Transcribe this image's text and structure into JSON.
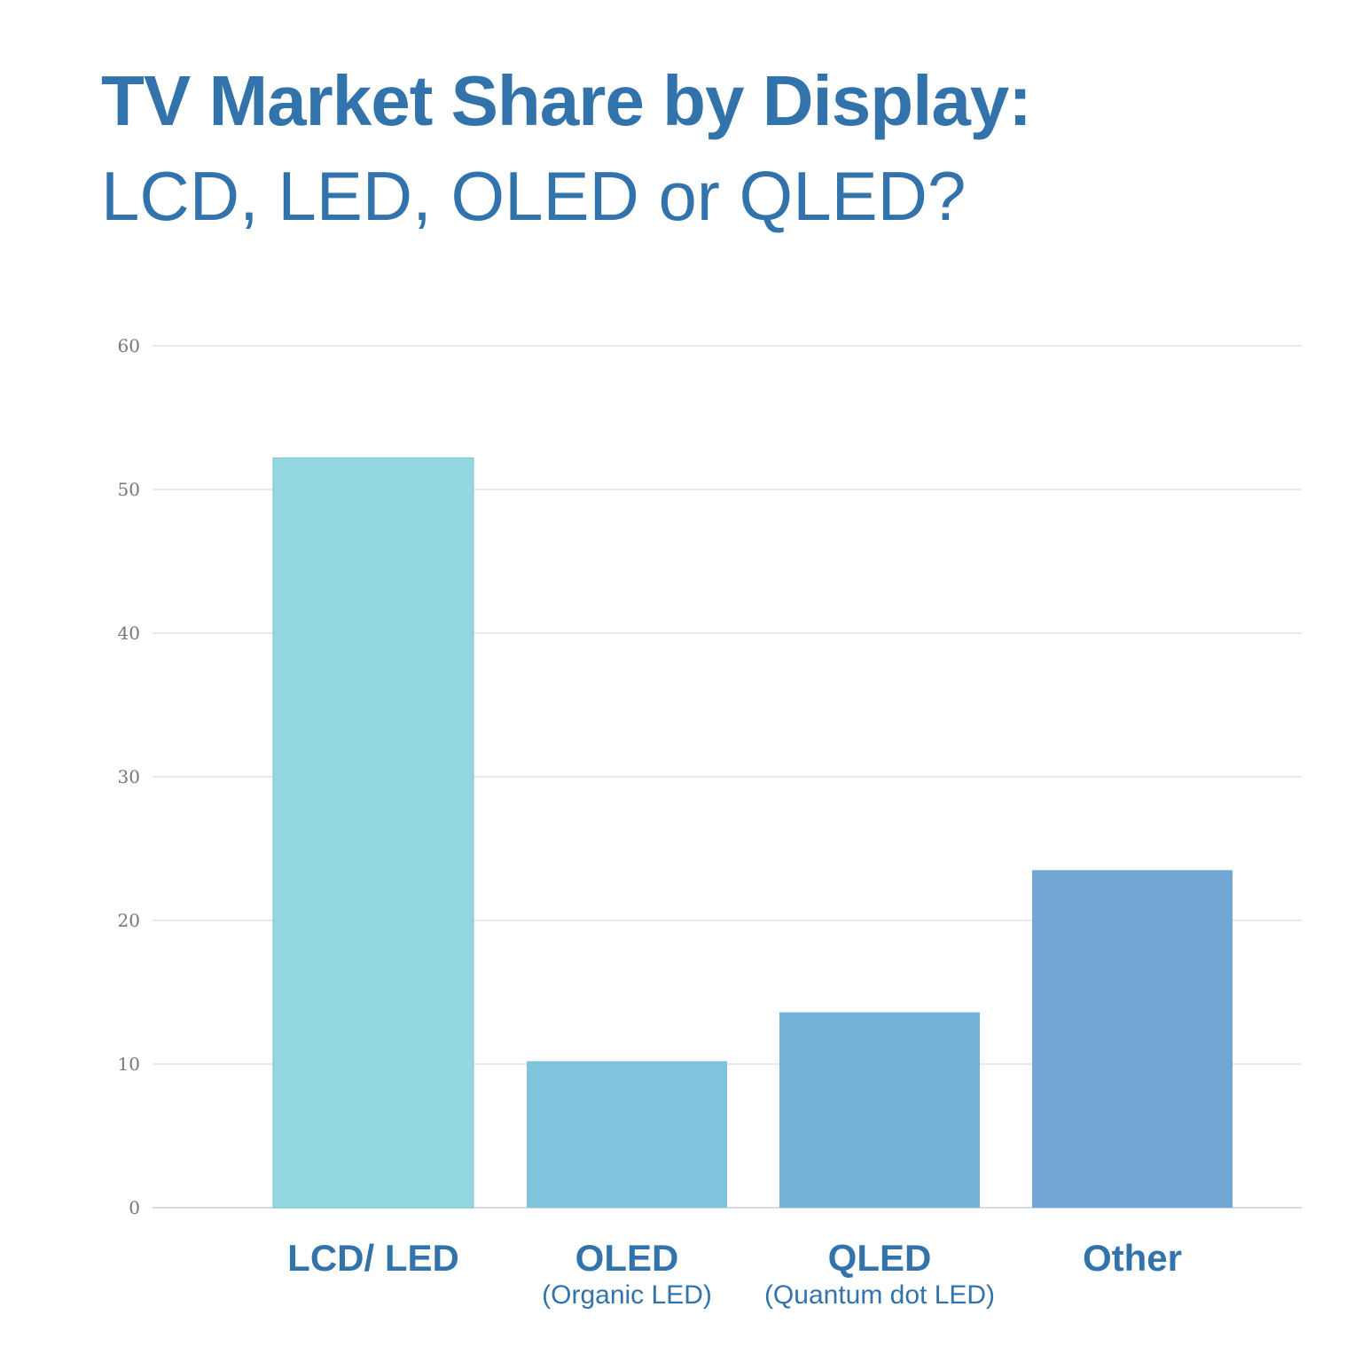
{
  "title": "TV Market Share by Display:",
  "subtitle": "LCD, LED, OLED or QLED?",
  "chart_data": {
    "type": "bar",
    "title": "TV Market Share by Display:",
    "subtitle": "LCD, LED, OLED or QLED?",
    "categories": [
      "LCD/ LED",
      "OLED",
      "QLED",
      "Other"
    ],
    "category_sublabels": [
      "",
      "(Organic LED)",
      "(Quantum dot LED)",
      ""
    ],
    "values": [
      52.2,
      10.2,
      13.6,
      23.5
    ],
    "colors": [
      "#93d7e0",
      "#80c3dc",
      "#75b2d9",
      "#72a7d5"
    ],
    "yticks": [
      "0",
      "10",
      "20",
      "30",
      "40",
      "50",
      "60"
    ],
    "ylim": [
      0,
      60
    ],
    "grid": true,
    "xlabel": "",
    "ylabel": ""
  }
}
